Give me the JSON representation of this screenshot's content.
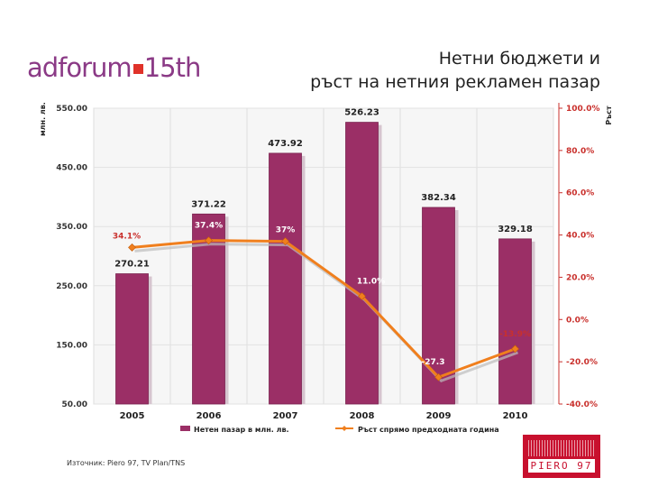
{
  "logo": {
    "part1": "adforum",
    "part2": "15th"
  },
  "title": {
    "line1": "Нетни бюджети и",
    "line2": "ръст на нетния рекламен пазар"
  },
  "source": "Източник: Piero 97, TV Plan/TNS",
  "brand": {
    "name": "PIERO 97",
    "color": "#c8102e"
  },
  "chart_data": {
    "type": "bar",
    "categories": [
      "2005",
      "2006",
      "2007",
      "2008",
      "2009",
      "2010"
    ],
    "y_left": {
      "label": "млн. лв.",
      "min": 50,
      "max": 550,
      "ticks": [
        "550.00",
        "450.00",
        "350.00",
        "250.00",
        "150.00",
        "50.00"
      ],
      "tick_values": [
        550,
        450,
        350,
        250,
        150,
        50
      ]
    },
    "y_right": {
      "label": "Ръст",
      "min": -40,
      "max": 100,
      "ticks": [
        "100.0%",
        "80.0%",
        "60.0%",
        "40.0%",
        "20.0%",
        "0.0%",
        "-20.0%",
        "-40.0%"
      ],
      "tick_values": [
        100,
        80,
        60,
        40,
        20,
        0,
        -20,
        -40
      ]
    },
    "series": [
      {
        "name": "Нетен пазар в млн. лв.",
        "type": "bar",
        "axis": "left",
        "color": "#9b2f66",
        "values": [
          270.21,
          371.22,
          473.92,
          526.23,
          382.34,
          329.18
        ],
        "labels": [
          "270.21",
          "371.22",
          "473.92",
          "526.23",
          "382.34",
          "329.18"
        ]
      },
      {
        "name": "Ръст спрямо предходната година",
        "type": "line",
        "axis": "right",
        "color": "#f07f1d",
        "values": [
          34.1,
          37.4,
          37,
          11,
          -27.3,
          -13.9
        ],
        "labels": [
          "34.1%",
          "37.4%",
          "37%",
          "11.0%",
          "-27.3",
          "-13.9%"
        ]
      }
    ],
    "grid": true,
    "legend": "bottom"
  }
}
